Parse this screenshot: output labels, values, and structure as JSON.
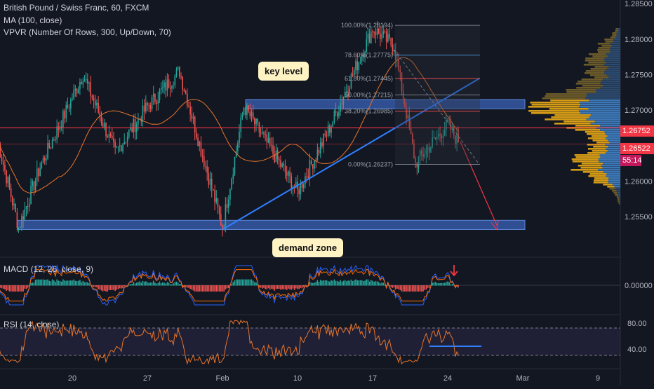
{
  "header": {
    "symbol_line": "British Pound / Swiss Franc, 60, FXCM",
    "ma_label": "MA (100, close)",
    "vpvr_label": "VPVR (Number Of Rows, 300, Up/Down, 70)"
  },
  "annotations": {
    "key_level": "key level",
    "demand_zone": "demand zone"
  },
  "colors": {
    "background": "#131722",
    "up_candle": "#26a69a",
    "down_candle": "#ef5350",
    "ma": "#e8752a",
    "zone": "#3a63b8",
    "red_line": "#f23645",
    "trendline": "#2f7fff",
    "vpvr_gold": "#d49b17",
    "vpvr_blue": "#3c78b8",
    "rsi_line": "#e8752a",
    "macd_line": "#2962ff",
    "signal_line": "#ff6d00"
  },
  "chart_data": [
    {
      "type": "candlestick",
      "title": "British Pound / Swiss Franc, 60, FXCM",
      "ylim": [
        1.2495,
        1.2855
      ],
      "y_ticks": [
        "1.28500",
        "1.28000",
        "1.27500",
        "1.27000",
        "1.26500",
        "1.26000",
        "1.25500"
      ],
      "x_ticks": [
        "20",
        "27",
        "Feb",
        "10",
        "17",
        "24",
        "Mar",
        "9"
      ],
      "price_labels": [
        {
          "value": "1.26752",
          "color": "#f23645"
        },
        {
          "value": "1.26522",
          "color": "#f23645"
        },
        {
          "value": "55:14",
          "color": "#f23645"
        }
      ],
      "key_points": [
        {
          "x": "13 Jan",
          "y": 1.266
        },
        {
          "x": "15 Jan",
          "y": 1.2535
        },
        {
          "x": "17 Jan",
          "y": 1.262
        },
        {
          "x": "21 Jan",
          "y": 1.275
        },
        {
          "x": "24 Jan",
          "y": 1.264
        },
        {
          "x": "27 Jan",
          "y": 1.2705
        },
        {
          "x": "30 Jan",
          "y": 1.2755
        },
        {
          "x": "3 Feb",
          "y": 1.2535
        },
        {
          "x": "5 Feb",
          "y": 1.2705
        },
        {
          "x": "10 Feb",
          "y": 1.2585
        },
        {
          "x": "13 Feb",
          "y": 1.2675
        },
        {
          "x": "17 Feb",
          "y": 1.2815
        },
        {
          "x": "19 Feb",
          "y": 1.279
        },
        {
          "x": "21 Feb",
          "y": 1.2625
        },
        {
          "x": "24 Feb",
          "y": 1.268
        },
        {
          "x": "25 Feb",
          "y": 1.2655
        }
      ],
      "zones": [
        {
          "name": "key level",
          "from": 1.2702,
          "to": 1.2715
        },
        {
          "name": "demand zone",
          "from": 1.2532,
          "to": 1.2545
        }
      ],
      "horizontal_lines": [
        1.26752,
        1.26522
      ],
      "fibonacci": {
        "levels": [
          {
            "label": "100.00%(1.28194)",
            "value": 1.28194
          },
          {
            "label": "78.60%(1.27775)",
            "value": 1.27775
          },
          {
            "label": "61.80%(1.27445)",
            "value": 1.27445
          },
          {
            "label": "50.00%(1.27215)",
            "value": 1.27215
          },
          {
            "label": "38.20%(1.26985)",
            "value": 1.26985
          },
          {
            "label": "0.00%(1.26237)",
            "value": 1.26237
          }
        ]
      }
    },
    {
      "type": "line",
      "title": "MACD (12, 26, close, 9)",
      "y_ticks": [
        "0.00000"
      ],
      "series": []
    },
    {
      "type": "line",
      "title": "RSI (14, close)",
      "y_ticks": [
        "80.00",
        "40.00"
      ],
      "levels": [
        70,
        30
      ],
      "series": []
    }
  ]
}
